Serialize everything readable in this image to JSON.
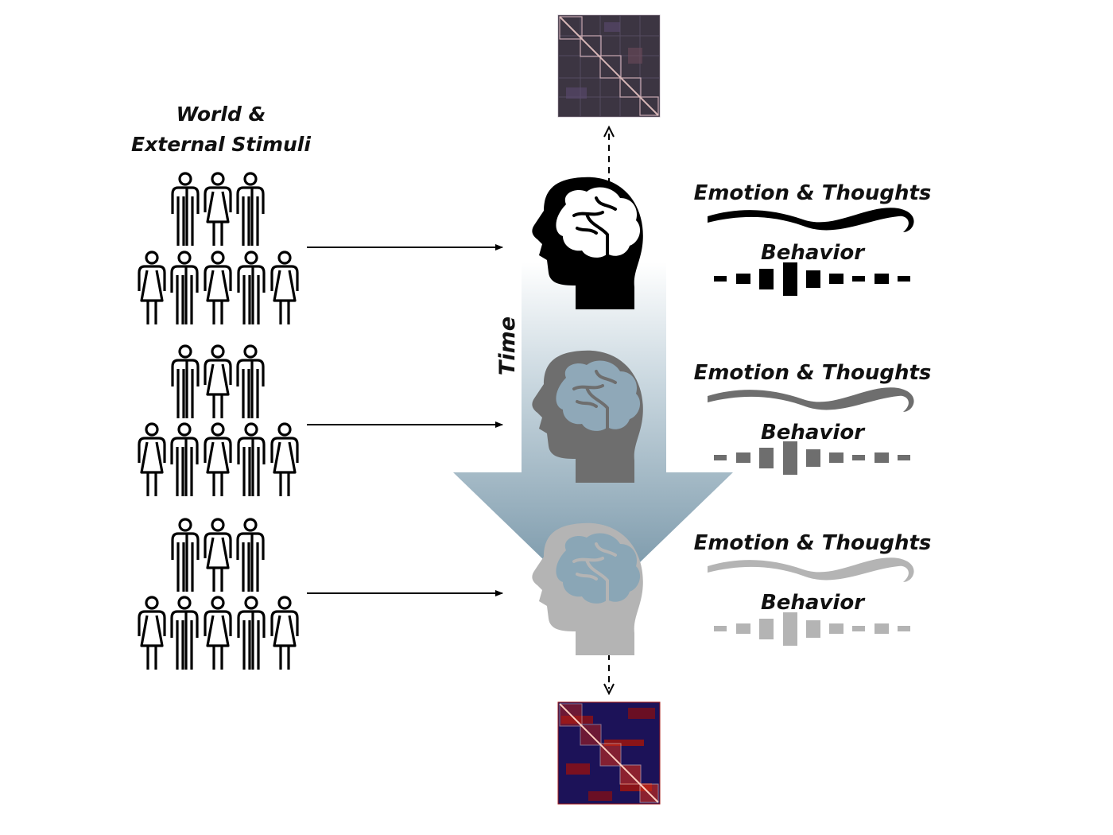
{
  "stimuli_label": {
    "line1": "World &",
    "line2": "External Stimuli"
  },
  "time_label": "Time",
  "states": [
    {
      "emotion_label": "Emotion & Thoughts",
      "behavior_label": "Behavior",
      "color": "#000000"
    },
    {
      "emotion_label": "Emotion & Thoughts",
      "behavior_label": "Behavior",
      "color": "#6e6e6e"
    },
    {
      "emotion_label": "Emotion & Thoughts",
      "behavior_label": "Behavior",
      "color": "#b4b4b4"
    }
  ],
  "colors": {
    "time_arrow_top": "#ffffff",
    "time_arrow_bottom": "#7f9cad",
    "brain_fill_light": "#8aa6b6",
    "matrix_top_bg": "#3a3340",
    "matrix_bottom_bg": "#1a1050"
  },
  "icons": {
    "person": "person-icon",
    "head": "head-profile-brain-icon",
    "matrix": "connectivity-matrix-icon"
  }
}
